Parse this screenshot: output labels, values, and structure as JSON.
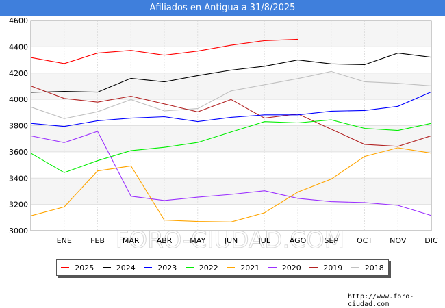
{
  "title": "Afiliados en Antigua a 31/8/2025",
  "watermark": "FORO-CIUDAD.COM",
  "url": "http://www.foro-ciudad.com",
  "chart_data": {
    "type": "line",
    "title": "Afiliados en Antigua a 31/8/2025",
    "xlabel": "",
    "ylabel": "",
    "categories": [
      "",
      "ENE",
      "FEB",
      "MAR",
      "ABR",
      "MAY",
      "JUN",
      "JUL",
      "AGO",
      "SEP",
      "OCT",
      "NOV",
      "DIC"
    ],
    "ylim": [
      3000,
      4600
    ],
    "yticks": [
      3000,
      3200,
      3400,
      3600,
      3800,
      4000,
      4200,
      4400,
      4600
    ],
    "grid": true,
    "legend_position": "bottom",
    "series": [
      {
        "name": "2025",
        "color": "#ff0000",
        "values": [
          4318,
          4272,
          4352,
          4372,
          4336,
          4367,
          4412,
          4447,
          4457,
          null,
          null,
          null,
          null
        ]
      },
      {
        "name": "2024",
        "color": "#000000",
        "values": [
          4053,
          4060,
          4055,
          4160,
          4133,
          4181,
          4222,
          4252,
          4300,
          4270,
          4264,
          4352,
          4320
        ]
      },
      {
        "name": "2023",
        "color": "#0000ff",
        "values": [
          3817,
          3794,
          3837,
          3857,
          3868,
          3831,
          3863,
          3882,
          3882,
          3910,
          3915,
          3947,
          4057
        ]
      },
      {
        "name": "2022",
        "color": "#00ee00",
        "values": [
          3590,
          3442,
          3533,
          3609,
          3635,
          3672,
          3751,
          3830,
          3821,
          3844,
          3779,
          3763,
          3817
        ]
      },
      {
        "name": "2021",
        "color": "#ffa500",
        "values": [
          3113,
          3181,
          3455,
          3493,
          3080,
          3070,
          3066,
          3136,
          3294,
          3393,
          3565,
          3631,
          3590
        ]
      },
      {
        "name": "2020",
        "color": "#9b30ff",
        "values": [
          3722,
          3671,
          3756,
          3262,
          3230,
          3255,
          3276,
          3304,
          3246,
          3221,
          3214,
          3193,
          3115
        ]
      },
      {
        "name": "2019",
        "color": "#b22222",
        "values": [
          4102,
          4007,
          3979,
          4024,
          3965,
          3905,
          3999,
          3857,
          3889,
          3773,
          3657,
          3642,
          3723
        ]
      },
      {
        "name": "2018",
        "color": "#c0c0c0",
        "values": [
          3942,
          3853,
          3906,
          3998,
          3912,
          3930,
          4064,
          4111,
          4158,
          4212,
          4134,
          4122,
          4103
        ]
      }
    ]
  }
}
